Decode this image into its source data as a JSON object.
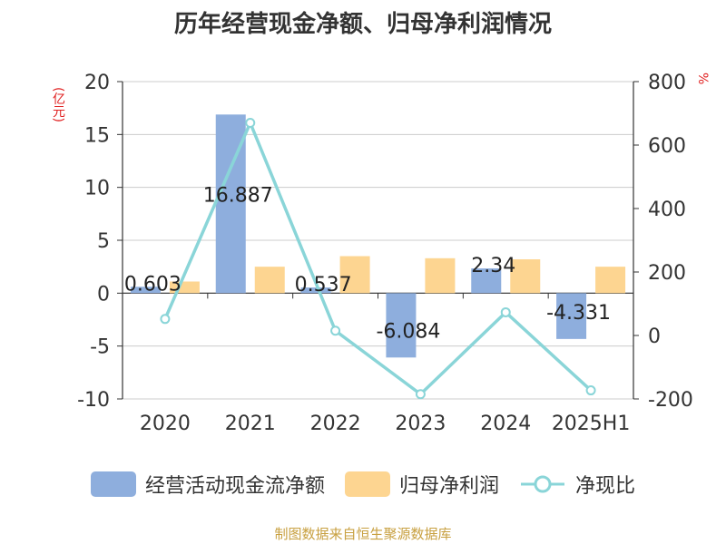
{
  "title": "历年经营现金净额、归母净利润情况",
  "units": {
    "left": "(亿元)",
    "right": "%"
  },
  "colors": {
    "operating_cash": "#8eaedd",
    "net_profit": "#fdd591",
    "ratio": "#8ad5d8",
    "unit_text": "#e02020",
    "source_text": "#c8a040"
  },
  "source": "制图数据来自恒生聚源数据库",
  "legend": [
    {
      "label": "经营活动现金流净额",
      "kind": "bar",
      "color_key": "operating_cash"
    },
    {
      "label": "归母净利润",
      "kind": "bar",
      "color_key": "net_profit"
    },
    {
      "label": "净现比",
      "kind": "line",
      "color_key": "ratio"
    }
  ],
  "chart_data": {
    "type": "bar",
    "title": "历年经营现金净额、归母净利润情况",
    "categories": [
      "2020",
      "2021",
      "2022",
      "2023",
      "2024",
      "2025H1"
    ],
    "series": [
      {
        "name": "经营活动现金流净额",
        "type": "bar",
        "axis": "left",
        "values": [
          0.603,
          16.887,
          0.537,
          -6.084,
          2.34,
          -4.331
        ],
        "data_labels": [
          "0.603",
          "16.887",
          "0.537",
          "-6.084",
          "2.34",
          "-4.331"
        ]
      },
      {
        "name": "归母净利润",
        "type": "bar",
        "axis": "left",
        "values": [
          1.1,
          2.5,
          3.5,
          3.3,
          3.2,
          2.5
        ]
      },
      {
        "name": "净现比",
        "type": "line",
        "axis": "right",
        "values": [
          52,
          670,
          15,
          -185,
          73,
          -173
        ]
      }
    ],
    "y_left": {
      "label": "(亿元)",
      "ylim": [
        -10,
        20
      ],
      "ticks": [
        -10,
        -5,
        0,
        5,
        10,
        15,
        20
      ]
    },
    "y_right": {
      "label": "%",
      "ylim": [
        -200,
        800
      ],
      "ticks": [
        -200,
        0,
        200,
        400,
        600,
        800
      ]
    },
    "grid": true,
    "legend_position": "bottom"
  }
}
